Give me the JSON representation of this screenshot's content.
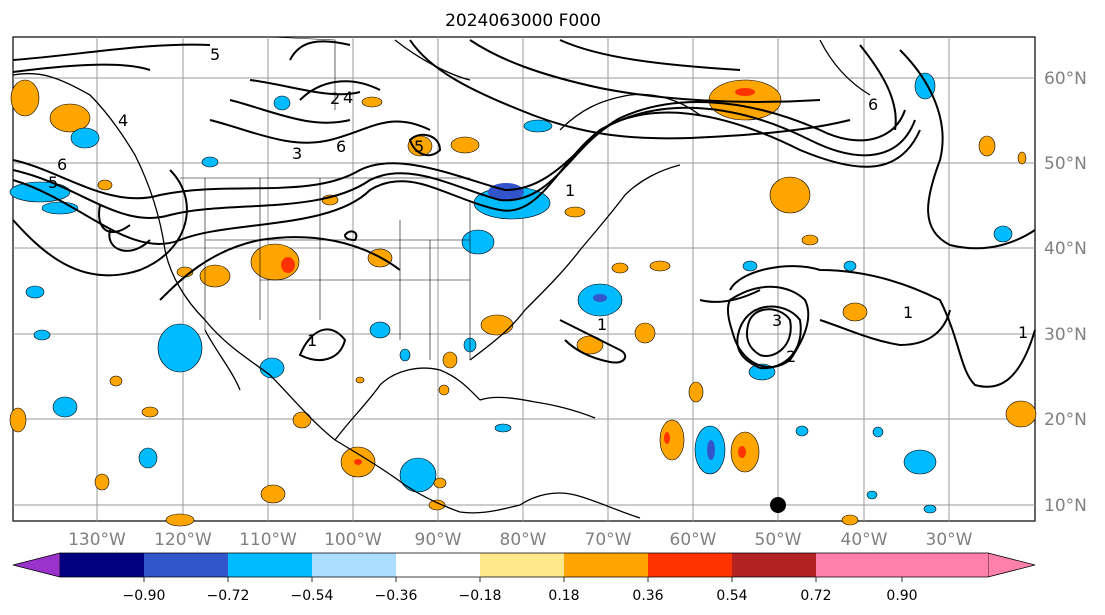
{
  "title": "2024063000 F000",
  "lat_labels": [
    "60°N",
    "50°N",
    "40°N",
    "30°N",
    "20°N",
    "10°N"
  ],
  "lon_labels": [
    "130°W",
    "120°W",
    "110°W",
    "100°W",
    "90°W",
    "80°W",
    "70°W",
    "60°W",
    "50°W",
    "40°W",
    "30°W"
  ],
  "colorbar": {
    "colors": [
      "#9933cc",
      "#000080",
      "#3355cc",
      "#00bbff",
      "#aaddff",
      "#ffffff",
      "#ffe88a",
      "#ffa500",
      "#ff3300",
      "#b22222",
      "#ff80aa"
    ],
    "tick_labels": [
      "−0.90",
      "−0.72",
      "−0.54",
      "−0.36",
      "−0.18",
      "0.18",
      "0.36",
      "0.54",
      "0.72",
      "0.90"
    ]
  },
  "contour_labels": [
    "4",
    "5",
    "6",
    "5",
    "4",
    "5",
    "6",
    "3",
    "2",
    "1",
    "1",
    "2",
    "3",
    "1",
    "1",
    "6",
    "1"
  ],
  "marker": "storm-position-marker"
}
